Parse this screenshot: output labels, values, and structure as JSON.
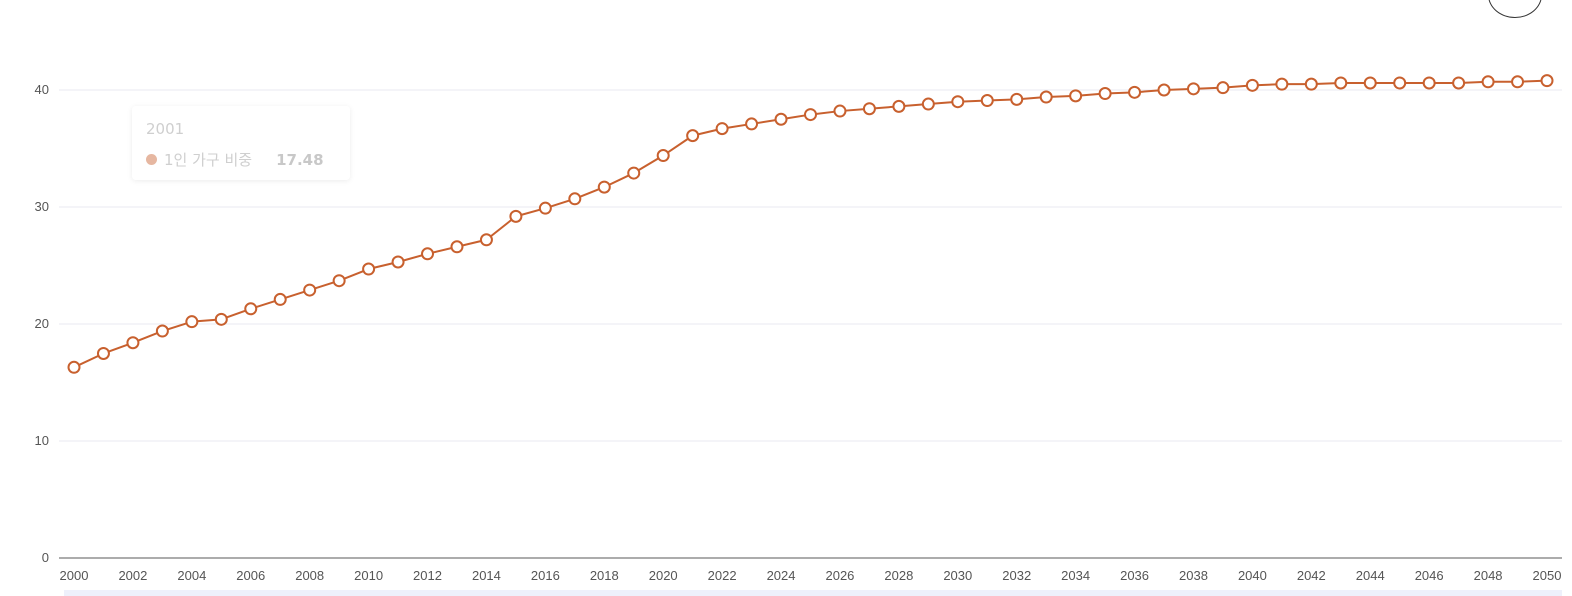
{
  "chart_data": {
    "type": "line",
    "x": [
      2000,
      2001,
      2002,
      2003,
      2004,
      2005,
      2006,
      2007,
      2008,
      2009,
      2010,
      2011,
      2012,
      2013,
      2014,
      2015,
      2016,
      2017,
      2018,
      2019,
      2020,
      2021,
      2022,
      2023,
      2024,
      2025,
      2026,
      2027,
      2028,
      2029,
      2030,
      2031,
      2032,
      2033,
      2034,
      2035,
      2036,
      2037,
      2038,
      2039,
      2040,
      2041,
      2042,
      2043,
      2044,
      2045,
      2046,
      2047,
      2048,
      2049,
      2050
    ],
    "x_tick_labels": [
      "2000",
      "2002",
      "2004",
      "2006",
      "2008",
      "2010",
      "2012",
      "2014",
      "2016",
      "2018",
      "2020",
      "2022",
      "2024",
      "2026",
      "2028",
      "2030",
      "2032",
      "2034",
      "2036",
      "2038",
      "2040",
      "2042",
      "2044",
      "2046",
      "2048",
      "2050"
    ],
    "y_tick_labels": [
      "0",
      "10",
      "20",
      "30",
      "40"
    ],
    "ylim": [
      0,
      40
    ],
    "grid": true,
    "series": [
      {
        "name": "1인 가구 비중",
        "color": "#c8602e",
        "values": [
          16.3,
          17.48,
          18.4,
          19.4,
          20.2,
          20.4,
          21.3,
          22.1,
          22.9,
          23.7,
          24.7,
          25.3,
          26.0,
          26.6,
          27.2,
          29.2,
          29.9,
          30.7,
          31.7,
          32.9,
          34.4,
          36.1,
          36.7,
          37.1,
          37.5,
          37.9,
          38.2,
          38.4,
          38.6,
          38.8,
          39.0,
          39.1,
          39.2,
          39.4,
          39.5,
          39.7,
          39.8,
          40.0,
          40.1,
          40.2,
          40.4,
          40.5,
          40.5,
          40.6,
          40.6,
          40.6,
          40.6,
          40.6,
          40.7,
          40.7,
          40.8
        ]
      }
    ],
    "title": "",
    "xlabel": "",
    "ylabel": ""
  },
  "tooltip": {
    "title": "2001",
    "series_name": "1인 가구 비중",
    "value": "17.48",
    "marker_color": "#c8602e"
  },
  "colors": {
    "line": "#c8602e",
    "grid": "#e8eaf2",
    "axis": "#7a7a7a"
  }
}
